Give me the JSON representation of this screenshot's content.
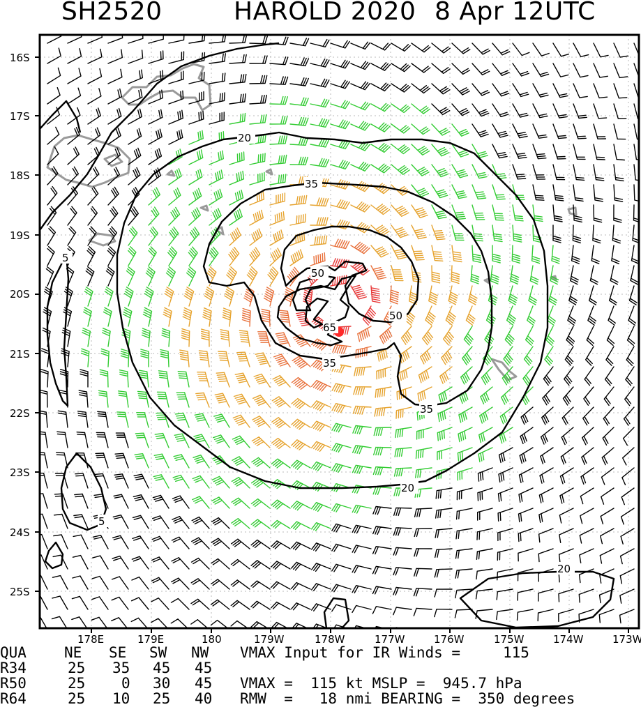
{
  "title": {
    "storm_id": "SH2520",
    "storm_name_year": "HAROLD 2020",
    "date_time": "8 Apr 12UTC"
  },
  "map": {
    "lat_labels": [
      "16S",
      "17S",
      "18S",
      "19S",
      "20S",
      "21S",
      "22S",
      "23S",
      "24S",
      "25S"
    ],
    "lon_labels": [
      "178E",
      "179E",
      "180",
      "179W",
      "178W",
      "177W",
      "176W",
      "175W",
      "174W",
      "173W"
    ],
    "contour_labels": [
      {
        "id": "c5a",
        "text": "5"
      },
      {
        "id": "c5b",
        "text": "5"
      },
      {
        "id": "c20a",
        "text": "20"
      },
      {
        "id": "c20b",
        "text": "20"
      },
      {
        "id": "c20c",
        "text": "20"
      },
      {
        "id": "c35a",
        "text": "35"
      },
      {
        "id": "c35b",
        "text": "35"
      },
      {
        "id": "c35c",
        "text": "35"
      },
      {
        "id": "c50a",
        "text": "50"
      },
      {
        "id": "c50b",
        "text": "50"
      },
      {
        "id": "c65",
        "text": "65"
      }
    ],
    "colors": {
      "barb_weak": "#000000",
      "barb_35": "#33cc33",
      "barb_50": "#e6a32e",
      "barb_64": "#e8703a",
      "barb_core": "#e83a3a",
      "land": "#999999",
      "center_marker": "#ff2a2a"
    }
  },
  "stats": {
    "header": [
      "QUA",
      "NE",
      "SE",
      "SW",
      "NW"
    ],
    "rows": [
      {
        "label": "R34",
        "values": [
          "25",
          "35",
          "45",
          "45"
        ]
      },
      {
        "label": "R50",
        "values": [
          "25",
          "0",
          "30",
          "45"
        ]
      },
      {
        "label": "R64",
        "values": [
          "25",
          "10",
          "25",
          "40"
        ]
      }
    ],
    "vmax_ir_label": "VMAX Input for IR Winds =",
    "vmax_ir_value": "115",
    "vmax_line": "VMAX =  115 kt MSLP =  945.7 hPa",
    "rmw_line": "RMW  =   18 nmi BEARING =  350 degrees"
  }
}
